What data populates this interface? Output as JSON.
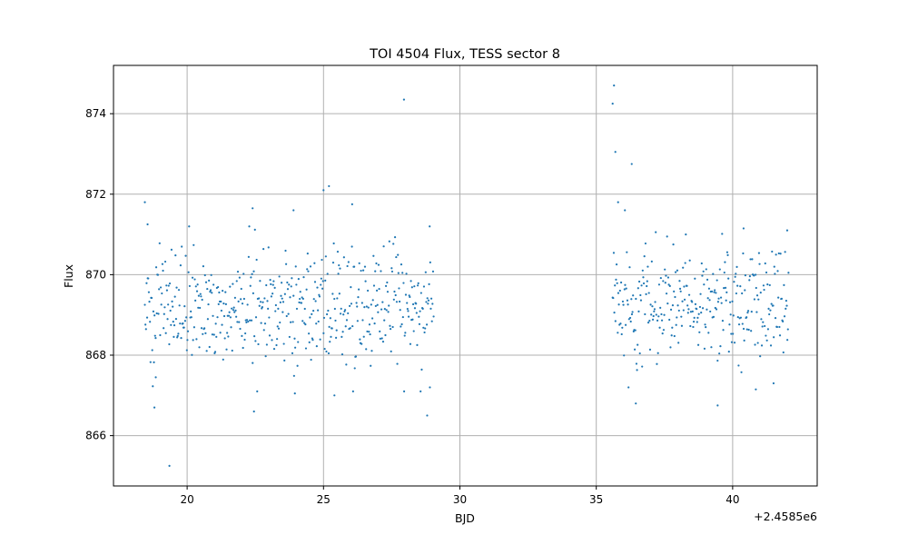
{
  "chart_data": {
    "type": "scatter",
    "title": "TOI 4504 Flux, TESS sector 8",
    "xlabel": "BJD",
    "ylabel": "Flux",
    "x_offset_label": "+2.4585e6",
    "x_offset": 2458500,
    "xlim": [
      2458517.3,
      2458543.1
    ],
    "ylim": [
      864.75,
      875.2
    ],
    "xticks": [
      2458520,
      2458525,
      2458530,
      2458535,
      2458540
    ],
    "xtick_labels": [
      "20",
      "25",
      "30",
      "35",
      "40"
    ],
    "yticks": [
      866,
      868,
      870,
      872,
      874
    ],
    "ytick_labels": [
      "866",
      "868",
      "870",
      "872",
      "874"
    ],
    "grid": true,
    "marker_color": "#1f77b4",
    "segments": [
      {
        "start": 2458518.45,
        "end": 2458529.05,
        "median": 869.2,
        "spread": 0.75
      },
      {
        "start": 2458535.6,
        "end": 2458542.05,
        "median": 869.3,
        "spread": 0.72
      }
    ],
    "outliers": [
      {
        "x": 2458518.45,
        "y": 871.8
      },
      {
        "x": 2458518.55,
        "y": 871.25
      },
      {
        "x": 2458518.8,
        "y": 866.7
      },
      {
        "x": 2458518.85,
        "y": 867.45
      },
      {
        "x": 2458519.35,
        "y": 865.25
      },
      {
        "x": 2458522.45,
        "y": 866.6
      },
      {
        "x": 2458522.4,
        "y": 871.65
      },
      {
        "x": 2458523.9,
        "y": 871.6
      },
      {
        "x": 2458523.95,
        "y": 867.05
      },
      {
        "x": 2458525.0,
        "y": 872.1
      },
      {
        "x": 2458525.2,
        "y": 872.2
      },
      {
        "x": 2458525.4,
        "y": 867.0
      },
      {
        "x": 2458526.05,
        "y": 871.75
      },
      {
        "x": 2458527.95,
        "y": 874.35
      },
      {
        "x": 2458528.8,
        "y": 866.5
      },
      {
        "x": 2458528.9,
        "y": 867.2
      },
      {
        "x": 2458535.65,
        "y": 874.7
      },
      {
        "x": 2458535.6,
        "y": 874.25
      },
      {
        "x": 2458535.7,
        "y": 873.05
      },
      {
        "x": 2458535.8,
        "y": 871.8
      },
      {
        "x": 2458536.05,
        "y": 871.6
      },
      {
        "x": 2458536.3,
        "y": 872.75
      },
      {
        "x": 2458536.45,
        "y": 866.8
      },
      {
        "x": 2458539.45,
        "y": 866.75
      },
      {
        "x": 2458540.85,
        "y": 867.15
      },
      {
        "x": 2458541.5,
        "y": 867.3
      },
      {
        "x": 2458540.4,
        "y": 871.15
      },
      {
        "x": 2458542.0,
        "y": 871.1
      }
    ]
  }
}
